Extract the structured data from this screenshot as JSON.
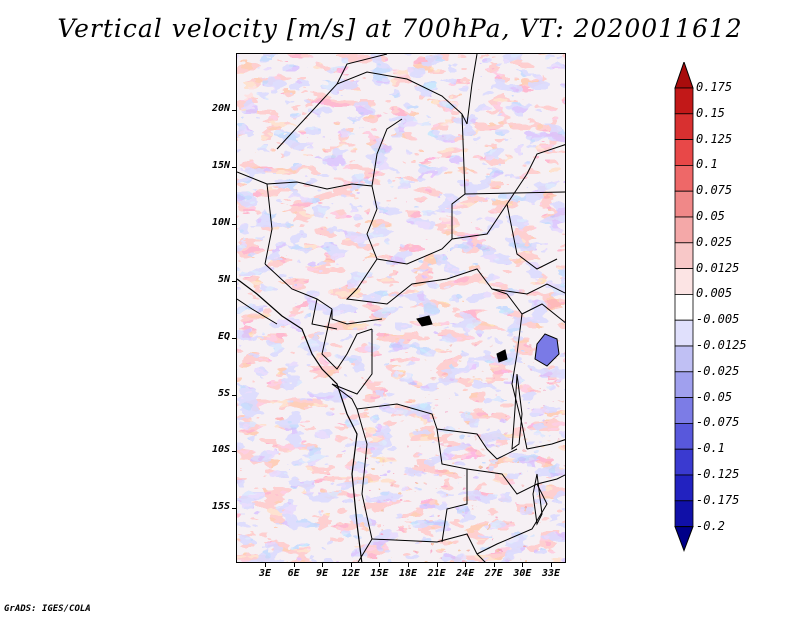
{
  "title": "Vertical velocity [m/s] at 700hPa, VT: 2020011612",
  "credit": "GrADS: IGES/COLA",
  "map": {
    "lat_labels": [
      "20N",
      "15N",
      "10N",
      "5N",
      "EQ",
      "5S",
      "10S",
      "15S"
    ],
    "lon_labels": [
      "3E",
      "6E",
      "9E",
      "12E",
      "15E",
      "18E",
      "21E",
      "24E",
      "27E",
      "30E",
      "33E"
    ],
    "field_style": "noisy red/blue shading of positive and negative vertical velocity"
  },
  "colorbar": {
    "levels": [
      "0.175",
      "0.15",
      "0.125",
      "0.1",
      "0.075",
      "0.05",
      "0.025",
      "0.0125",
      "0.005",
      "-0.005",
      "-0.0125",
      "-0.025",
      "-0.05",
      "-0.075",
      "-0.1",
      "-0.125",
      "-0.175",
      "-0.2"
    ],
    "colors": [
      "#a80c0c",
      "#c21818",
      "#d83030",
      "#e84848",
      "#ee6868",
      "#f08888",
      "#f4a8a8",
      "#f8c8c8",
      "#fce4e4",
      "#ffffff",
      "#e0e0fc",
      "#c0c0f4",
      "#a0a0ee",
      "#7c7ce6",
      "#5858dc",
      "#3a3ad0",
      "#2222c0",
      "#1010a8",
      "#000088"
    ],
    "top_arrow_color": "#a80c0c",
    "bottom_arrow_color": "#000088"
  }
}
